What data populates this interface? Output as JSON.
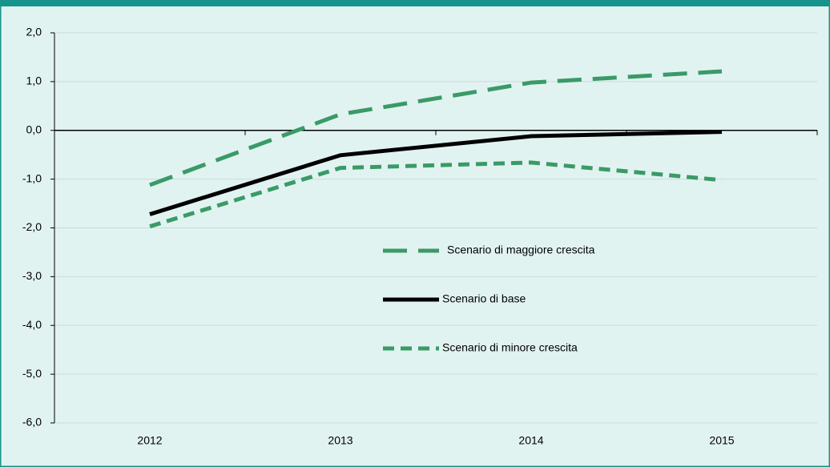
{
  "chart_data": {
    "type": "line",
    "categories": [
      "2012",
      "2013",
      "2014",
      "2015"
    ],
    "series": [
      {
        "name": "Scenario di maggiore crescita",
        "color": "#3a9a68",
        "dash": "long",
        "values": [
          -1.12,
          0.33,
          0.98,
          1.21
        ]
      },
      {
        "name": "Scenario di base",
        "color": "#000000",
        "dash": "solid",
        "values": [
          -1.72,
          -0.51,
          -0.12,
          -0.03
        ]
      },
      {
        "name": "Scenario di minore crescita",
        "color": "#3a9a68",
        "dash": "short",
        "values": [
          -1.97,
          -0.77,
          -0.66,
          -1.02
        ]
      }
    ],
    "ylim": [
      -6,
      2
    ],
    "yticks": [
      {
        "value": -6,
        "label": "-6,0"
      },
      {
        "value": -5,
        "label": "-5,0"
      },
      {
        "value": -4,
        "label": "-4,0"
      },
      {
        "value": -3,
        "label": "-3,0"
      },
      {
        "value": -2,
        "label": "-2,0"
      },
      {
        "value": -1,
        "label": "-1,0"
      },
      {
        "value": 0,
        "label": "0,0"
      },
      {
        "value": 1,
        "label": "1,0"
      },
      {
        "value": 2,
        "label": "2,0"
      }
    ],
    "grid": true
  }
}
